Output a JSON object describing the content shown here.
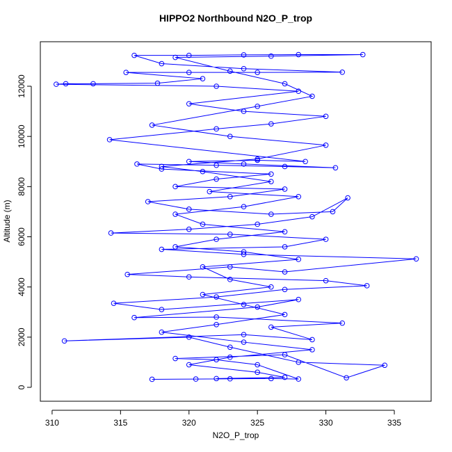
{
  "chart_data": {
    "type": "line",
    "title": "HIPPO2 Northbound N2O_P_trop",
    "x_label": "N2O_P_trop",
    "y_label": "Altitude (m)",
    "color": "#0000ff",
    "markers": true,
    "xlim": [
      309.14,
      337.69
    ],
    "ylim": [
      -554,
      13774
    ],
    "xticks": [
      310,
      315,
      320,
      325,
      330,
      335
    ],
    "yticks": [
      0,
      2000,
      4000,
      6000,
      8000,
      10000,
      12000
    ],
    "x": [
      317.3,
      320.5,
      323,
      326,
      328,
      325,
      322,
      319,
      327,
      331.5,
      334.3,
      328,
      323,
      320,
      310.9,
      324,
      329,
      326,
      331.2,
      322,
      316,
      325,
      328,
      318,
      314.5,
      322,
      327,
      333,
      330,
      320,
      315.5,
      323,
      327,
      336.6,
      324,
      318,
      327,
      330,
      323,
      314.3,
      320,
      325,
      329,
      331.6,
      330.5,
      326,
      320,
      317,
      323,
      327,
      319,
      322,
      326,
      318,
      316.2,
      322,
      327,
      330.7,
      324,
      320,
      325,
      328.5,
      314.2,
      322,
      326,
      330,
      324,
      320,
      328,
      322,
      310.3,
      311,
      313,
      317.7,
      321,
      315.4,
      320,
      325,
      331.2,
      324,
      318,
      316,
      320,
      324,
      328,
      332.7,
      326,
      319,
      323,
      327,
      329,
      325,
      317.3,
      323,
      330,
      325,
      318,
      321,
      326,
      321.5,
      328,
      324,
      319,
      321,
      327,
      322,
      319,
      324,
      328,
      321,
      323,
      326,
      321,
      324,
      327,
      322,
      318,
      324,
      329,
      323,
      320,
      325,
      327,
      322
    ],
    "values": [
      320,
      330,
      340,
      350,
      330,
      900,
      1100,
      1150,
      1300,
      380,
      880,
      1000,
      1600,
      2000,
      1850,
      2100,
      1900,
      2400,
      2560,
      2800,
      2780,
      3200,
      3500,
      3100,
      3350,
      3600,
      3900,
      4050,
      4250,
      4400,
      4500,
      4800,
      4600,
      5120,
      5300,
      5500,
      5600,
      5900,
      6100,
      6150,
      6300,
      6500,
      6800,
      7550,
      7000,
      6900,
      7100,
      7400,
      7600,
      7900,
      8000,
      8300,
      8500,
      8700,
      8900,
      8850,
      8800,
      8750,
      8900,
      9000,
      9050,
      9000,
      9870,
      10300,
      10500,
      10800,
      11000,
      11300,
      11800,
      12000,
      12080,
      12100,
      12100,
      12120,
      12300,
      12550,
      12550,
      12550,
      12560,
      12700,
      12900,
      13230,
      13230,
      13250,
      13260,
      13260,
      13200,
      13150,
      12600,
      12100,
      11600,
      11200,
      10450,
      10000,
      9650,
      9100,
      8800,
      8600,
      8200,
      7800,
      7600,
      7200,
      6900,
      6500,
      6200,
      5900,
      5600,
      5400,
      5100,
      4800,
      4300,
      4000,
      3700,
      3300,
      2900,
      2500,
      2200,
      1800,
      1500,
      1200,
      900,
      600,
      400,
      350
    ]
  }
}
